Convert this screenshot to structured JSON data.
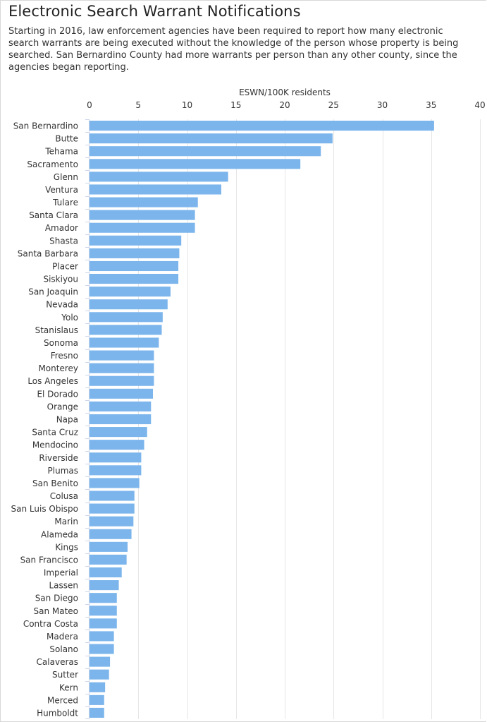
{
  "title": "Electronic Search Warrant Notifications",
  "subtitle": "Starting in 2016, law enforcement agencies have been required to report how many electronic search warrants are being executed without the knowledge of the person whose property is being searched. San Bernardino County had more warrants per person than any other county, since the agencies began reporting.",
  "colors": {
    "bar": "#7cb5ec",
    "grid": "#e6e6e6",
    "axis": "#ccd6eb",
    "text": "#333333"
  },
  "chart_data": {
    "type": "bar",
    "orientation": "horizontal",
    "xlabel": "ESWN/100K residents",
    "xlim": [
      0,
      40
    ],
    "xticks": [
      0,
      5,
      10,
      15,
      20,
      25,
      30,
      35,
      40
    ],
    "axis_position": "top",
    "grid": true,
    "categories": [
      "San Bernardino",
      "Butte",
      "Tehama",
      "Sacramento",
      "Glenn",
      "Ventura",
      "Tulare",
      "Santa Clara",
      "Amador",
      "Shasta",
      "Santa Barbara",
      "Placer",
      "Siskiyou",
      "San Joaquin",
      "Nevada",
      "Yolo",
      "Stanislaus",
      "Sonoma",
      "Fresno",
      "Monterey",
      "Los Angeles",
      "El Dorado",
      "Orange",
      "Napa",
      "Santa Cruz",
      "Mendocino",
      "Riverside",
      "Plumas",
      "San Benito",
      "Colusa",
      "San Luis Obispo",
      "Marin",
      "Alameda",
      "Kings",
      "San Francisco",
      "Imperial",
      "Lassen",
      "San Diego",
      "San Mateo",
      "Contra Costa",
      "Madera",
      "Solano",
      "Calaveras",
      "Sutter",
      "Kern",
      "Merced",
      "Humboldt"
    ],
    "values": [
      35.3,
      24.9,
      23.7,
      21.6,
      14.2,
      13.5,
      11.1,
      10.8,
      10.8,
      9.4,
      9.2,
      9.1,
      9.1,
      8.3,
      8.0,
      7.5,
      7.4,
      7.1,
      6.6,
      6.6,
      6.6,
      6.5,
      6.3,
      6.3,
      5.9,
      5.6,
      5.3,
      5.3,
      5.1,
      4.6,
      4.6,
      4.5,
      4.3,
      3.9,
      3.8,
      3.3,
      3.0,
      2.8,
      2.8,
      2.8,
      2.5,
      2.5,
      2.1,
      2.0,
      1.6,
      1.5,
      1.5
    ]
  }
}
